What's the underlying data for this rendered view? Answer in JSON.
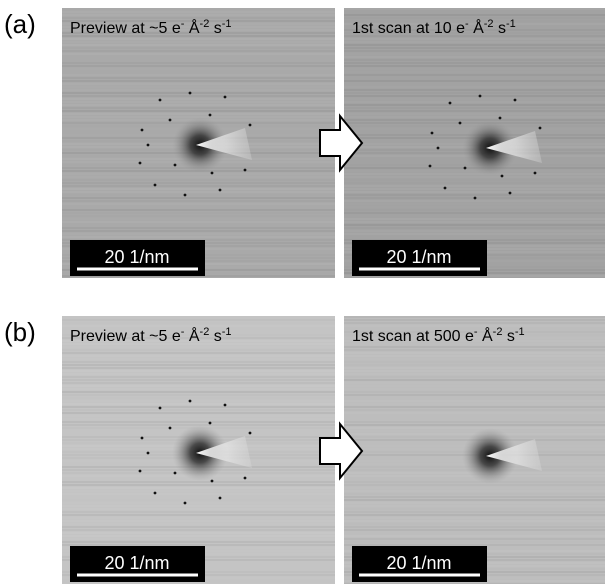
{
  "panels": [
    {
      "label": "(a)",
      "images": [
        {
          "caption": [
            {
              "text": "Preview at ~5 e"
            },
            {
              "sup": "-"
            },
            {
              "text": " Å"
            },
            {
              "sup": "-2"
            },
            {
              "text": " s"
            },
            {
              "sup": "-1"
            }
          ],
          "scale_bar": "20 1/nm"
        },
        {
          "caption": [
            {
              "text": "1st scan at 10 e"
            },
            {
              "sup": "-"
            },
            {
              "text": " Å"
            },
            {
              "sup": "-2"
            },
            {
              "text": " s"
            },
            {
              "sup": "-1"
            }
          ],
          "scale_bar": "20 1/nm"
        }
      ]
    },
    {
      "label": "(b)",
      "images": [
        {
          "caption": [
            {
              "text": "Preview at ~5 e"
            },
            {
              "sup": "-"
            },
            {
              "text": " Å"
            },
            {
              "sup": "-2"
            },
            {
              "text": " s"
            },
            {
              "sup": "-1"
            }
          ],
          "scale_bar": "20 1/nm"
        },
        {
          "caption": [
            {
              "text": "1st scan at 500 e"
            },
            {
              "sup": "-"
            },
            {
              "text": " Å"
            },
            {
              "sup": "-2"
            },
            {
              "text": " s"
            },
            {
              "sup": "-1"
            }
          ],
          "scale_bar": "20 1/nm"
        }
      ]
    }
  ]
}
